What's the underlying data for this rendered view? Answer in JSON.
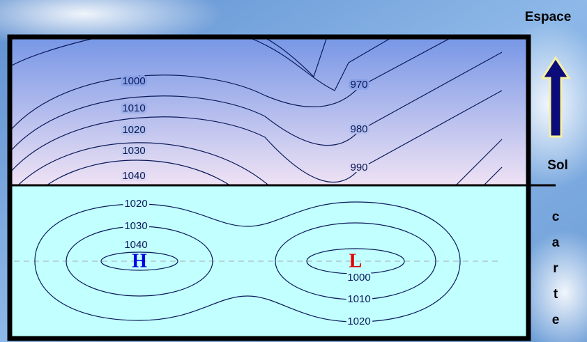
{
  "labels": {
    "top": "Espace",
    "bottom": "Sol",
    "side": [
      "c",
      "a",
      "r",
      "t",
      "e"
    ]
  },
  "vertical_section": {
    "contours": [
      1000,
      1010,
      1020,
      1030,
      1040,
      970,
      980,
      990
    ]
  },
  "map": {
    "high": "H",
    "low": "L",
    "contours": [
      1020,
      1030,
      1040,
      1000,
      1010,
      1020
    ]
  }
}
